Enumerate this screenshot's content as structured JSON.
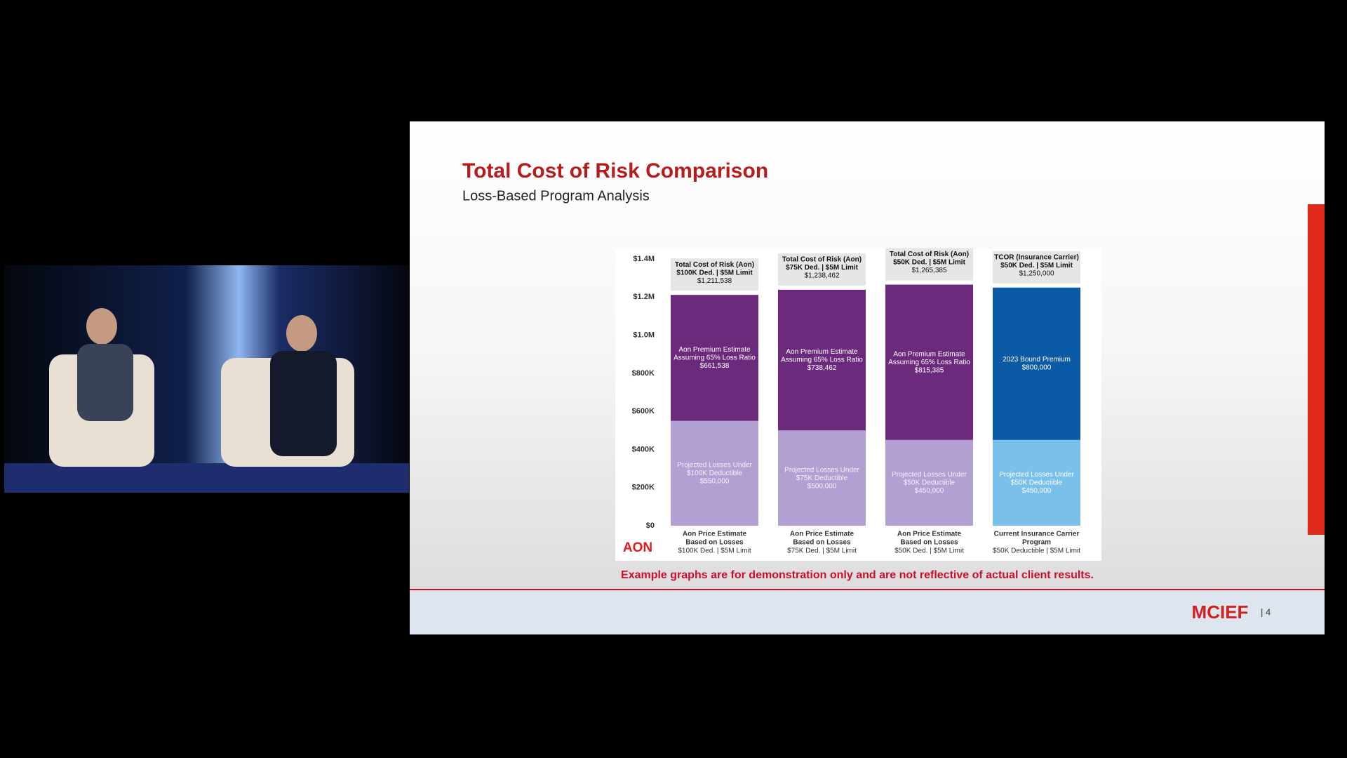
{
  "slide": {
    "title": "Total Cost of Risk Comparison",
    "subtitle": "Loss-Based Program Analysis",
    "note": "Example graphs are for demonstration only and are not reflective of actual client results.",
    "chart_logo": "AON",
    "footer_logo": "MCIEF",
    "page_number": "| 4"
  },
  "chart_data": {
    "type": "stacked-bar",
    "categories": [
      [
        "Aon Price Estimate",
        "Based on Losses",
        "$100K Ded. | $5M Limit"
      ],
      [
        "Aon Price Estimate",
        "Based on Losses",
        "$75K Ded. | $5M Limit"
      ],
      [
        "Aon Price Estimate",
        "Based on Losses",
        "$50K Ded. | $5M Limit"
      ],
      [
        "Current Insurance Carrier",
        "Program",
        "$50K Deductible | $5M Limit"
      ]
    ],
    "series": [
      {
        "colors": [
          "#b3a0d2",
          "#b3a0d2",
          "#b3a0d2",
          "#79c0ea"
        ],
        "values": [
          550000,
          500000,
          450000,
          450000
        ],
        "label_lines": [
          [
            "Projected Losses Under",
            "$100K Deductible"
          ],
          [
            "Projected Losses Under",
            "$75K Deductible"
          ],
          [
            "Projected Losses Under",
            "$50K Deductible"
          ],
          [
            "Projected Losses Under",
            "$50K Deductible"
          ]
        ],
        "value_labels": [
          "$550,000",
          "$500,000",
          "$450,000",
          "$450,000"
        ]
      },
      {
        "colors": [
          "#6c2a7c",
          "#6c2a7c",
          "#6c2a7c",
          "#0b5aa5"
        ],
        "values": [
          661538,
          738462,
          815385,
          800000
        ],
        "label_lines": [
          [
            "Aon Premium Estimate",
            "Assuming 65% Loss Ratio"
          ],
          [
            "Aon Premium Estimate",
            "Assuming 65% Loss Ratio"
          ],
          [
            "Aon Premium Estimate",
            "Assuming 65% Loss Ratio"
          ],
          [
            "2023 Bound Premium"
          ]
        ],
        "value_labels": [
          "$661,538",
          "$738,462",
          "$815,385",
          "$800,000"
        ]
      }
    ],
    "totals": [
      {
        "lines": [
          "Total Cost of Risk (Aon)",
          "$100K Ded. | $5M Limit"
        ],
        "value": 1211538,
        "label": "$1,211,538"
      },
      {
        "lines": [
          "Total Cost of Risk (Aon)",
          "$75K Ded. | $5M Limit"
        ],
        "value": 1238462,
        "label": "$1,238,462"
      },
      {
        "lines": [
          "Total Cost of Risk (Aon)",
          "$50K Ded. | $5M Limit"
        ],
        "value": 1265385,
        "label": "$1,265,385"
      },
      {
        "lines": [
          "TCOR (Insurance Carrier)",
          "$50K Ded. | $5M Limit"
        ],
        "value": 1250000,
        "label": "$1,250,000"
      }
    ],
    "ylim": [
      0,
      1400000
    ],
    "yticks": [
      {
        "value": 0,
        "label": "$0"
      },
      {
        "value": 200000,
        "label": "$200K"
      },
      {
        "value": 400000,
        "label": "$400K"
      },
      {
        "value": 600000,
        "label": "$600K"
      },
      {
        "value": 800000,
        "label": "$800K"
      },
      {
        "value": 1000000,
        "label": "$1.0M"
      },
      {
        "value": 1200000,
        "label": "$1.2M"
      },
      {
        "value": 1400000,
        "label": "$1.4M"
      }
    ]
  }
}
